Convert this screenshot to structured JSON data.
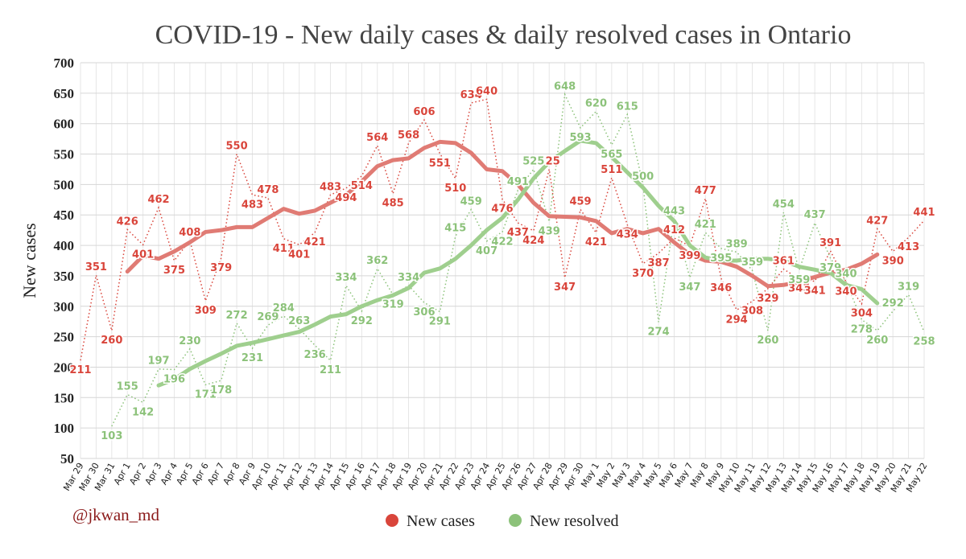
{
  "chart_data": {
    "type": "line",
    "title": "COVID-19 - New daily cases & daily resolved cases in Ontario",
    "y_label": "New cases",
    "credit": "@jkwan_md",
    "categories": [
      "Mar 29",
      "Mar 30",
      "Mar 31",
      "Apr 1",
      "Apr 2",
      "Apr 3",
      "Apr 4",
      "Apr 5",
      "Apr 6",
      "Apr 7",
      "Apr 8",
      "Apr 9",
      "Apr 10",
      "Apr 11",
      "Apr 12",
      "Apr 13",
      "Apr 14",
      "Apr 15",
      "Apr 16",
      "Apr 17",
      "Apr 18",
      "Apr 19",
      "Apr 20",
      "Apr 21",
      "Apr 22",
      "Apr 23",
      "Apr 24",
      "Apr 25",
      "Apr 26",
      "Apr 27",
      "Apr 28",
      "Apr 29",
      "Apr 30",
      "May 1",
      "May 2",
      "May 3",
      "May 4",
      "May 5",
      "May 6",
      "May 7",
      "May 8",
      "May 9",
      "May 10",
      "May 11",
      "May 12",
      "May 13",
      "May 14",
      "May 15",
      "May 16",
      "May 17",
      "May 18",
      "May 19",
      "May 20",
      "May 21",
      "May 22"
    ],
    "series": [
      {
        "name": "New cases",
        "color": "#d9453b",
        "trend_color": "#e07b74",
        "values": [
          211,
          351,
          260,
          426,
          401,
          462,
          375,
          408,
          309,
          379,
          550,
          483,
          478,
          411,
          401,
          421,
          483,
          494,
          514,
          564,
          485,
          568,
          606,
          551,
          510,
          634,
          640,
          476,
          437,
          424,
          525,
          347,
          459,
          421,
          511,
          434,
          370,
          387,
          412,
          399,
          477,
          346,
          294,
          308,
          329,
          361,
          345,
          341,
          391,
          340,
          304,
          427,
          390,
          413,
          441
        ],
        "trend": [
          null,
          null,
          null,
          357,
          383,
          378,
          390,
          405,
          422,
          425,
          430,
          430,
          445,
          460,
          452,
          457,
          470,
          483,
          505,
          530,
          540,
          543,
          560,
          570,
          568,
          552,
          525,
          522,
          500,
          470,
          448,
          447,
          446,
          440,
          420,
          427,
          420,
          427,
          405,
          385,
          375,
          373,
          365,
          350,
          333,
          335,
          340,
          348,
          355,
          360,
          370,
          385,
          null,
          null,
          null
        ]
      },
      {
        "name": "New resolved",
        "color": "#8cc27a",
        "trend_color": "#9fcf8e",
        "values": [
          null,
          null,
          103,
          155,
          142,
          197,
          196,
          230,
          171,
          178,
          272,
          231,
          269,
          284,
          263,
          236,
          211,
          334,
          292,
          362,
          319,
          334,
          306,
          291,
          415,
          459,
          407,
          422,
          491,
          525,
          439,
          648,
          593,
          620,
          565,
          615,
          500,
          274,
          443,
          347,
          421,
          395,
          389,
          359,
          260,
          454,
          359,
          437,
          379,
          340,
          278,
          260,
          292,
          319,
          258
        ],
        "trend": [
          null,
          null,
          null,
          null,
          null,
          170,
          180,
          197,
          210,
          222,
          235,
          240,
          246,
          252,
          258,
          270,
          283,
          287,
          300,
          310,
          318,
          330,
          355,
          362,
          378,
          400,
          425,
          445,
          475,
          510,
          537,
          555,
          572,
          568,
          545,
          520,
          495,
          465,
          440,
          400,
          380,
          375,
          375,
          378,
          378,
          375,
          365,
          360,
          355,
          335,
          328,
          305,
          null,
          null,
          null
        ]
      }
    ],
    "ylim": [
      50,
      700
    ],
    "yticks": [
      50,
      100,
      150,
      200,
      250,
      300,
      350,
      400,
      450,
      500,
      550,
      600,
      650,
      700
    ],
    "grid": true
  }
}
